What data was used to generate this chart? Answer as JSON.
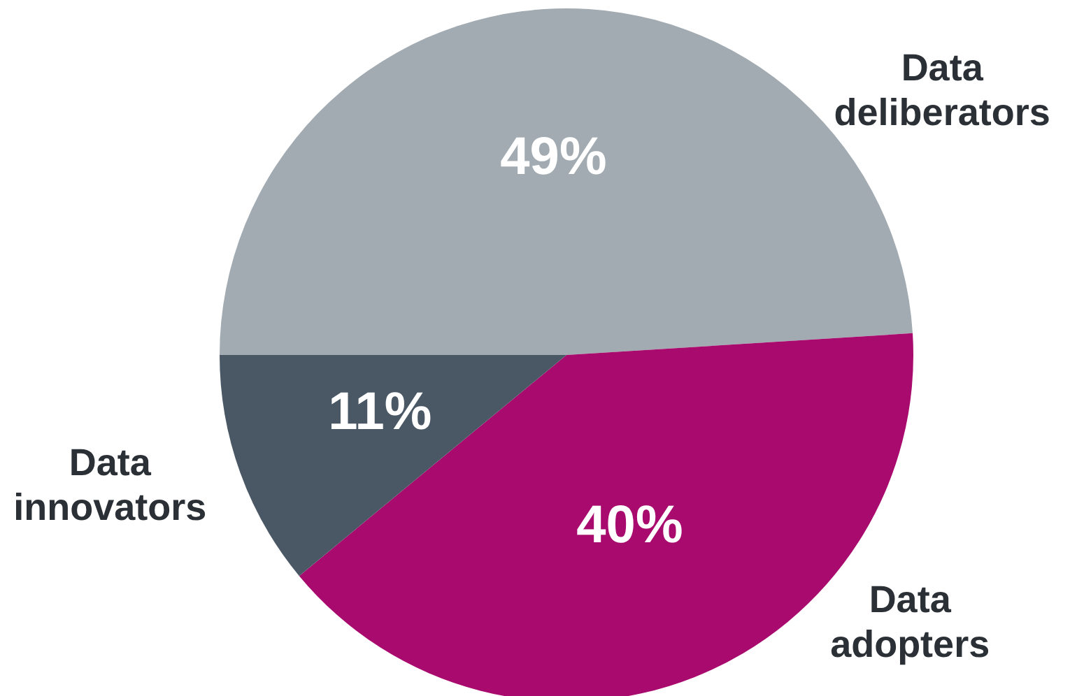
{
  "chart_data": {
    "type": "pie",
    "categories": [
      "Data deliberators",
      "Data adopters",
      "Data innovators"
    ],
    "values": [
      49,
      40,
      11
    ],
    "colors": [
      "#a2abb1",
      "#a80a6e",
      "#4a5865"
    ],
    "value_labels": [
      "49%",
      "40%",
      "11%"
    ]
  }
}
